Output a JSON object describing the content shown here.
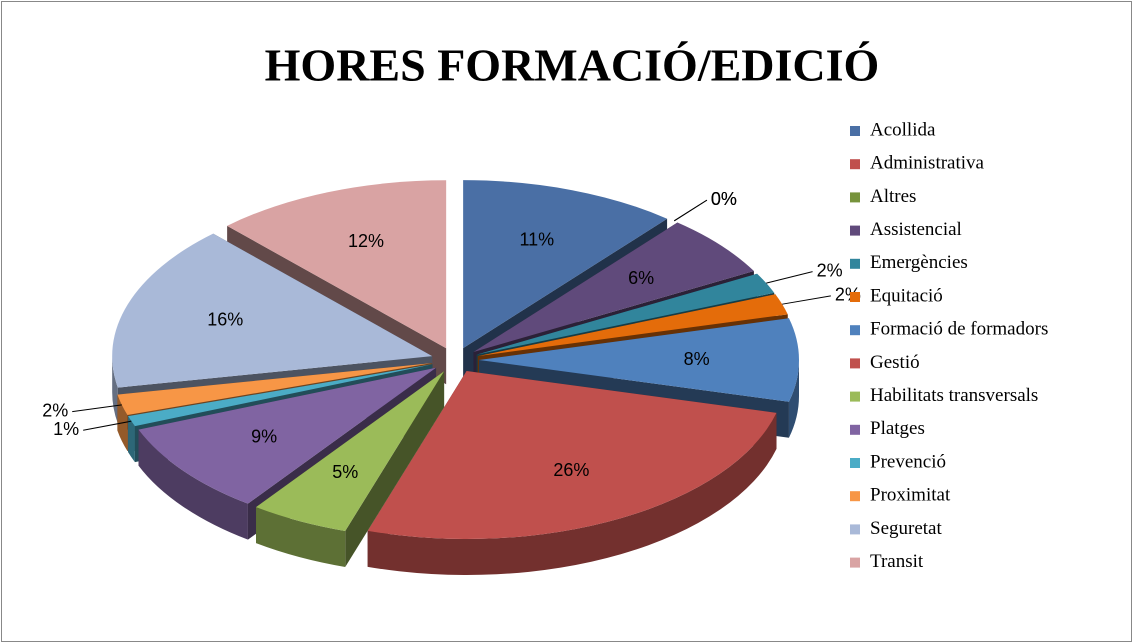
{
  "chart_data": {
    "type": "pie",
    "title": "HORES FORMACIÓ/EDICIÓ",
    "categories": [
      "Acollida",
      "Administrativa",
      "Altres",
      "Assistencial",
      "Emergències",
      "Equitació",
      "Formació de formadors",
      "Gestió",
      "Habilitats transversals",
      "Platges",
      "Prevenció",
      "Proximitat",
      "Seguretat",
      "Transit"
    ],
    "values": [
      11,
      0,
      0,
      6,
      2,
      2,
      8,
      26,
      5,
      9,
      1,
      2,
      16,
      12
    ],
    "value_labels": [
      "11%",
      "0%",
      "0%",
      "6%",
      "2%",
      "2%",
      "8%",
      "26%",
      "5%",
      "9%",
      "1%",
      "2%",
      "16%",
      "12%"
    ],
    "colors": [
      "#4A6FA5",
      "#C0504D",
      "#77933C",
      "#604A7B",
      "#31859C",
      "#E46C0A",
      "#4F81BD",
      "#C0504D",
      "#9BBB59",
      "#8064A2",
      "#4BACC6",
      "#F79646",
      "#A9B9D8",
      "#D9A3A3"
    ],
    "legend": "right"
  }
}
